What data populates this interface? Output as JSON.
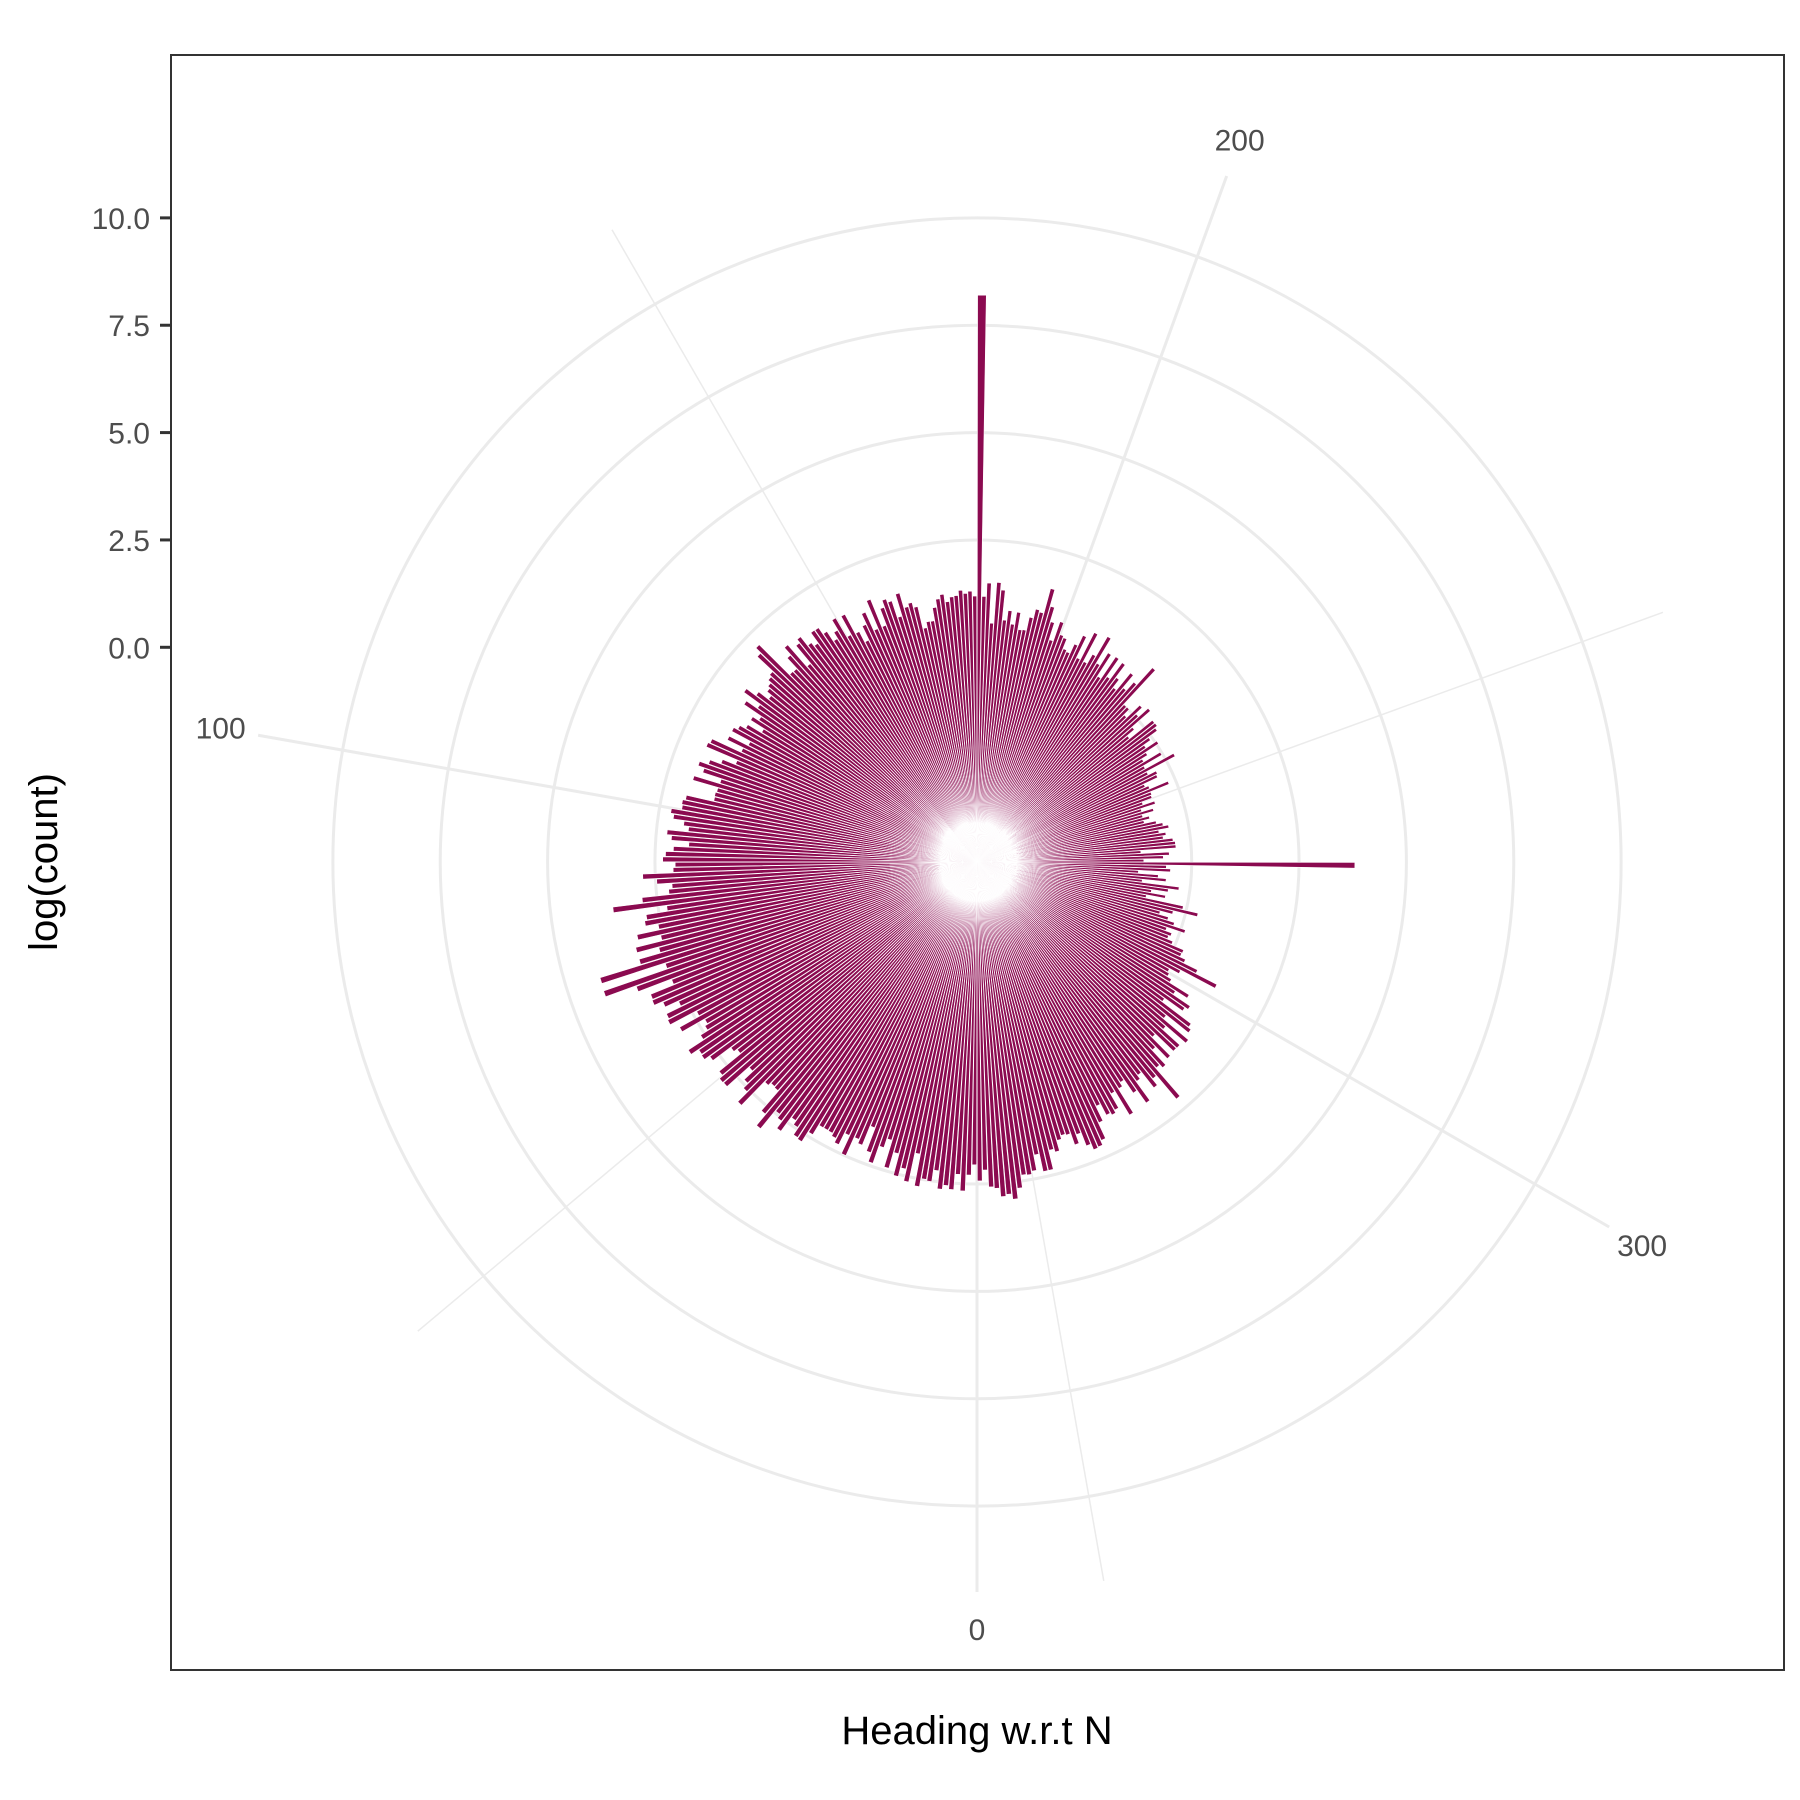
{
  "chart_data": {
    "type": "bar",
    "coord": "polar",
    "title": "",
    "xlabel": "Heading w.r.t N",
    "ylabel": "log(count)",
    "theta_breaks": [
      0,
      100,
      200,
      300
    ],
    "theta_break_labels": [
      "0",
      "100",
      "200",
      "300"
    ],
    "theta_range": [
      0,
      360
    ],
    "r_breaks": [
      0.0,
      2.5,
      5.0,
      7.5,
      10.0
    ],
    "r_break_labels": [
      "0.0",
      "2.5",
      "5.0",
      "7.5",
      "10.0"
    ],
    "r_range": [
      -5.0,
      12.0
    ],
    "grid": true,
    "bar_color": "#8b0a50",
    "grid_color": "#ebebeb",
    "panel_border_color": "#333333",
    "bin_width_deg": 1,
    "bins": [
      {
        "x": 0,
        "y": 2.5
      },
      {
        "x": 10,
        "y": 2.3
      },
      {
        "x": 20,
        "y": 2.0
      },
      {
        "x": 30,
        "y": 2.3
      },
      {
        "x": 40,
        "y": 2.4
      },
      {
        "x": 50,
        "y": 2.5
      },
      {
        "x": 60,
        "y": 2.8
      },
      {
        "x": 70,
        "y": 3.1
      },
      {
        "x": 80,
        "y": 2.6
      },
      {
        "x": 90,
        "y": 2.3
      },
      {
        "x": 100,
        "y": 1.8
      },
      {
        "x": 110,
        "y": 1.5
      },
      {
        "x": 120,
        "y": 1.3
      },
      {
        "x": 130,
        "y": 1.3
      },
      {
        "x": 140,
        "y": 1.3
      },
      {
        "x": 150,
        "y": 1.2
      },
      {
        "x": 160,
        "y": 1.2
      },
      {
        "x": 170,
        "y": 0.9
      },
      {
        "x": 180,
        "y": 1.0
      },
      {
        "x": 190,
        "y": 0.9
      },
      {
        "x": 200,
        "y": 0.7
      },
      {
        "x": 210,
        "y": 0.7
      },
      {
        "x": 220,
        "y": 0.3
      },
      {
        "x": 230,
        "y": 0.0
      },
      {
        "x": 240,
        "y": -0.3
      },
      {
        "x": 250,
        "y": -0.6
      },
      {
        "x": 260,
        "y": -0.7
      },
      {
        "x": 270,
        "y": -0.9
      },
      {
        "x": 280,
        "y": -0.6
      },
      {
        "x": 290,
        "y": -0.1
      },
      {
        "x": 300,
        "y": 0.6
      },
      {
        "x": 310,
        "y": 1.0
      },
      {
        "x": 320,
        "y": 1.3
      },
      {
        "x": 330,
        "y": 1.6
      },
      {
        "x": 340,
        "y": 2.0
      },
      {
        "x": 350,
        "y": 2.3
      }
    ],
    "spikes": [
      {
        "x": 180,
        "y": 8.2
      },
      {
        "x": 270,
        "y": 3.8
      },
      {
        "x": 70,
        "y": 4.2
      },
      {
        "x": 39,
        "y": 3.0
      }
    ]
  }
}
